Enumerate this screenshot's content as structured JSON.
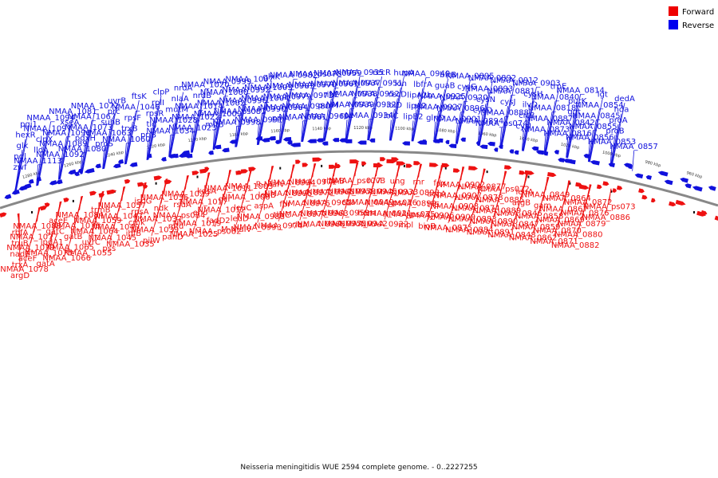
{
  "caption": "Neisseria meningitidis WUE 2594 complete genome. - 0..2227255",
  "legend": [
    {
      "label": "Forward",
      "color": "#ee0000"
    },
    {
      "label": "Reverse",
      "color": "#0000ee"
    }
  ],
  "colors": {
    "forward": "#ee1111",
    "reverse": "#1111dd",
    "backbone": "#888888"
  },
  "ticks": [
    "1280 kbp",
    "1260 kbp",
    "1240 kbp",
    "1220 kbp",
    "1200 kbp",
    "1180 kbp",
    "1160 kbp",
    "1140 kbp",
    "1120 kbp",
    "1100 kbp",
    "1080 kbp",
    "1060 kbp",
    "1040 kbp",
    "1020 kbp",
    "1000 kbp",
    "980 kbp",
    "960 kbp"
  ],
  "reverse_labels": [
    "zwf",
    "pgl",
    "glk",
    "hexR",
    "pgi1",
    "NMAA_1113",
    "lldA",
    "clpX",
    "NMAA_1097",
    "NMAA_1094",
    "NMAA_1092",
    "NMAA_1089",
    "NMAA_1096",
    "xseA",
    "NMAA_1081",
    "NMAA_1080",
    "pdxH",
    "NMAA_1073",
    "NMAA_1067",
    "NMAA_1072",
    "proS",
    "NMAA_1063",
    "suhB",
    "prc",
    "uvrB",
    "NMAA_1060",
    "trxB",
    "rpsF",
    "NMAA_1046",
    "ftsK",
    "priB",
    "tig",
    "rpsR",
    "rplI",
    "clpP",
    "NMAA_1034",
    "NMAA_1028",
    "mutM",
    "nlaA",
    "nrdA",
    "NMAA_1023",
    "NMAA_1022",
    "NMAA_1014",
    "nrdB",
    "NMAA_1020",
    "mltB",
    "NMAA_1009",
    "NMAA_1002",
    "NMAA_1000",
    "NMAA_0999",
    "NMAA_0998",
    "NMAA_ps081",
    "NMAA_0996",
    "NMAA_0992",
    "NMAA_1007",
    "NMAA_0991",
    "NMAA_0990",
    "NMAA_1004",
    "NMAA_1003",
    "glxK",
    "ppiA",
    "NMAA_0984",
    "NMAA_0979",
    "NMAA_0983",
    "NMAA_0982",
    "NMAA_0981",
    "NMAA_0980",
    "NMAA_0973",
    "NMAA_0970",
    "NMAA_ps078",
    "NMAA_0969",
    "purM",
    "ribE",
    "NMAA_0961",
    "NMAA_0959",
    "rpe",
    "NMAA_0939",
    "NMAA_0938",
    "NMAA_0937",
    "NMAA_0935",
    "NMAA_0934",
    "NMAA_0932",
    "NMAA_0952",
    "NMAA_0951",
    "recR",
    "lolC",
    "lolD",
    "recD",
    "lon",
    "hupA",
    "lipB2",
    "lipA2",
    "lipA2b",
    "lbfrA",
    "NMAA_0940",
    "glnD",
    "NMAA_0927",
    "NMAA_0925",
    "guaB",
    "bfrB",
    "NMAA_0901",
    "NMAA_0896",
    "NMAA_0920",
    "cysG",
    "NMAA_0895",
    "NMAA_0894",
    "cysD",
    "cysN",
    "NMAA_0893",
    "NMAA_0892",
    "NMAA_ps074",
    "NMAA_0888",
    "cysJ",
    "NMAA_0881",
    "NMAA_0912",
    "cysI",
    "crtB",
    "ilvD",
    "cysH",
    "NMAA_0903",
    "NMAA_0873",
    "NMAA_0887",
    "NMAA_0818",
    "NMAA_0840",
    "trpE",
    "NMAA_0816",
    "NMAA_0842",
    "ggt",
    "purK",
    "NMAA_0814",
    "NMAA_0856",
    "NMAA_0855",
    "NMAA_0845",
    "NMAA_0854",
    "lgt",
    "NMAA_0853",
    "proB",
    "proA",
    "hda",
    "dedA",
    "NMAA_0857"
  ],
  "forward_labels": [
    "rbfA",
    "truB",
    "nadE",
    "trxA",
    "argD",
    "NMAA_1088",
    "NMAA_1077",
    "NMAA_1079",
    "aceF",
    "NMAA_1078",
    "aceE",
    "gatC",
    "lpdA1",
    "NMAA_1075",
    "gatA",
    "NMAA_1084",
    "NMAA_1076",
    "gatB",
    "NMAA_1065",
    "NMAA_1066",
    "trmB",
    "NMAA_1059",
    "NMAA_1064",
    "uvrC",
    "NMAA_1055",
    "NMAA_1057",
    "NMAA_1047",
    "NMAA_1049",
    "NMAA_1045",
    "pss",
    "ispG",
    "rpsA",
    "cmk",
    "ihfB",
    "NMAA_1035",
    "NMAA_1036",
    "ndk",
    "NMAA_1037",
    "NMAA_1039",
    "pilW",
    "NMAA_1029",
    "rsuA",
    "NMAA_ps084",
    "mfd",
    "panD",
    "kdsA",
    "NMAA_1017",
    "eno",
    "NMAA_1019",
    "NMAA_1025",
    "NMAA_1011",
    "gcr",
    "NMAA_1012",
    "fadD2",
    "NMAA_ps082",
    "NMAA_1005",
    "NMAA_1006",
    "leuC",
    "leuD",
    "M-NlaIV",
    "R-NlaIV",
    "leuB",
    "aspA",
    "NMAA_0988",
    "NMAA_0993",
    "NMAA_0994",
    "NMAA_0995",
    "fpr",
    "thrC",
    "NMAA_0974",
    "NMAA_0971",
    "NMAA_0972",
    "NMAA_0975",
    "NMAA_0977",
    "ribA",
    "ribAB",
    "NMAA_0965",
    "NMAA_0962",
    "NMAA_0963",
    "NMAA_0966",
    "NMAA_ps077",
    "NMAA_0958",
    "cca",
    "NMAA_0953",
    "NMAA_0955",
    "ruvB",
    "NMAA_0945",
    "NMAA_0949",
    "hom",
    "NMAA_0942",
    "ung",
    "NMAA_0933",
    "NMAA_ps076",
    "NMAA_0921",
    "NMAA_0922",
    "rnr",
    "NMAA_0898",
    "NMAA_0899",
    "NMAA_ps075",
    "mpl",
    "fdx",
    "accA",
    "tilS",
    "NMAA_0906",
    "bioB",
    "NMAA_0902",
    "NMAA_0907",
    "NMAA_0908",
    "NMAA_0909",
    "NMAA_0875",
    "NMAA_0877",
    "NMAA_0878",
    "NMAA_0874",
    "NMAA_0883",
    "NMAA_0884",
    "NMAA_ps072",
    "NMAA_0885",
    "NMAA_0889",
    "NMAA_0890",
    "NMAA_0891",
    "leuA",
    "argB",
    "NMAA_0846",
    "NMAA_0847",
    "NMAA_0848",
    "NMAA_0849",
    "gam",
    "NMAA_0858",
    "NMAA_0859",
    "NMAA_0862",
    "NMAA_0864",
    "NMAA_0867",
    "NMAA_0869",
    "NMAA_0870",
    "NMAA_0871",
    "NMAA_0872",
    "NMAA_0876",
    "NMAA_0879",
    "NMAA_0880",
    "NMAA_0882",
    "NMAA_ps073",
    "NMAA_0886"
  ]
}
